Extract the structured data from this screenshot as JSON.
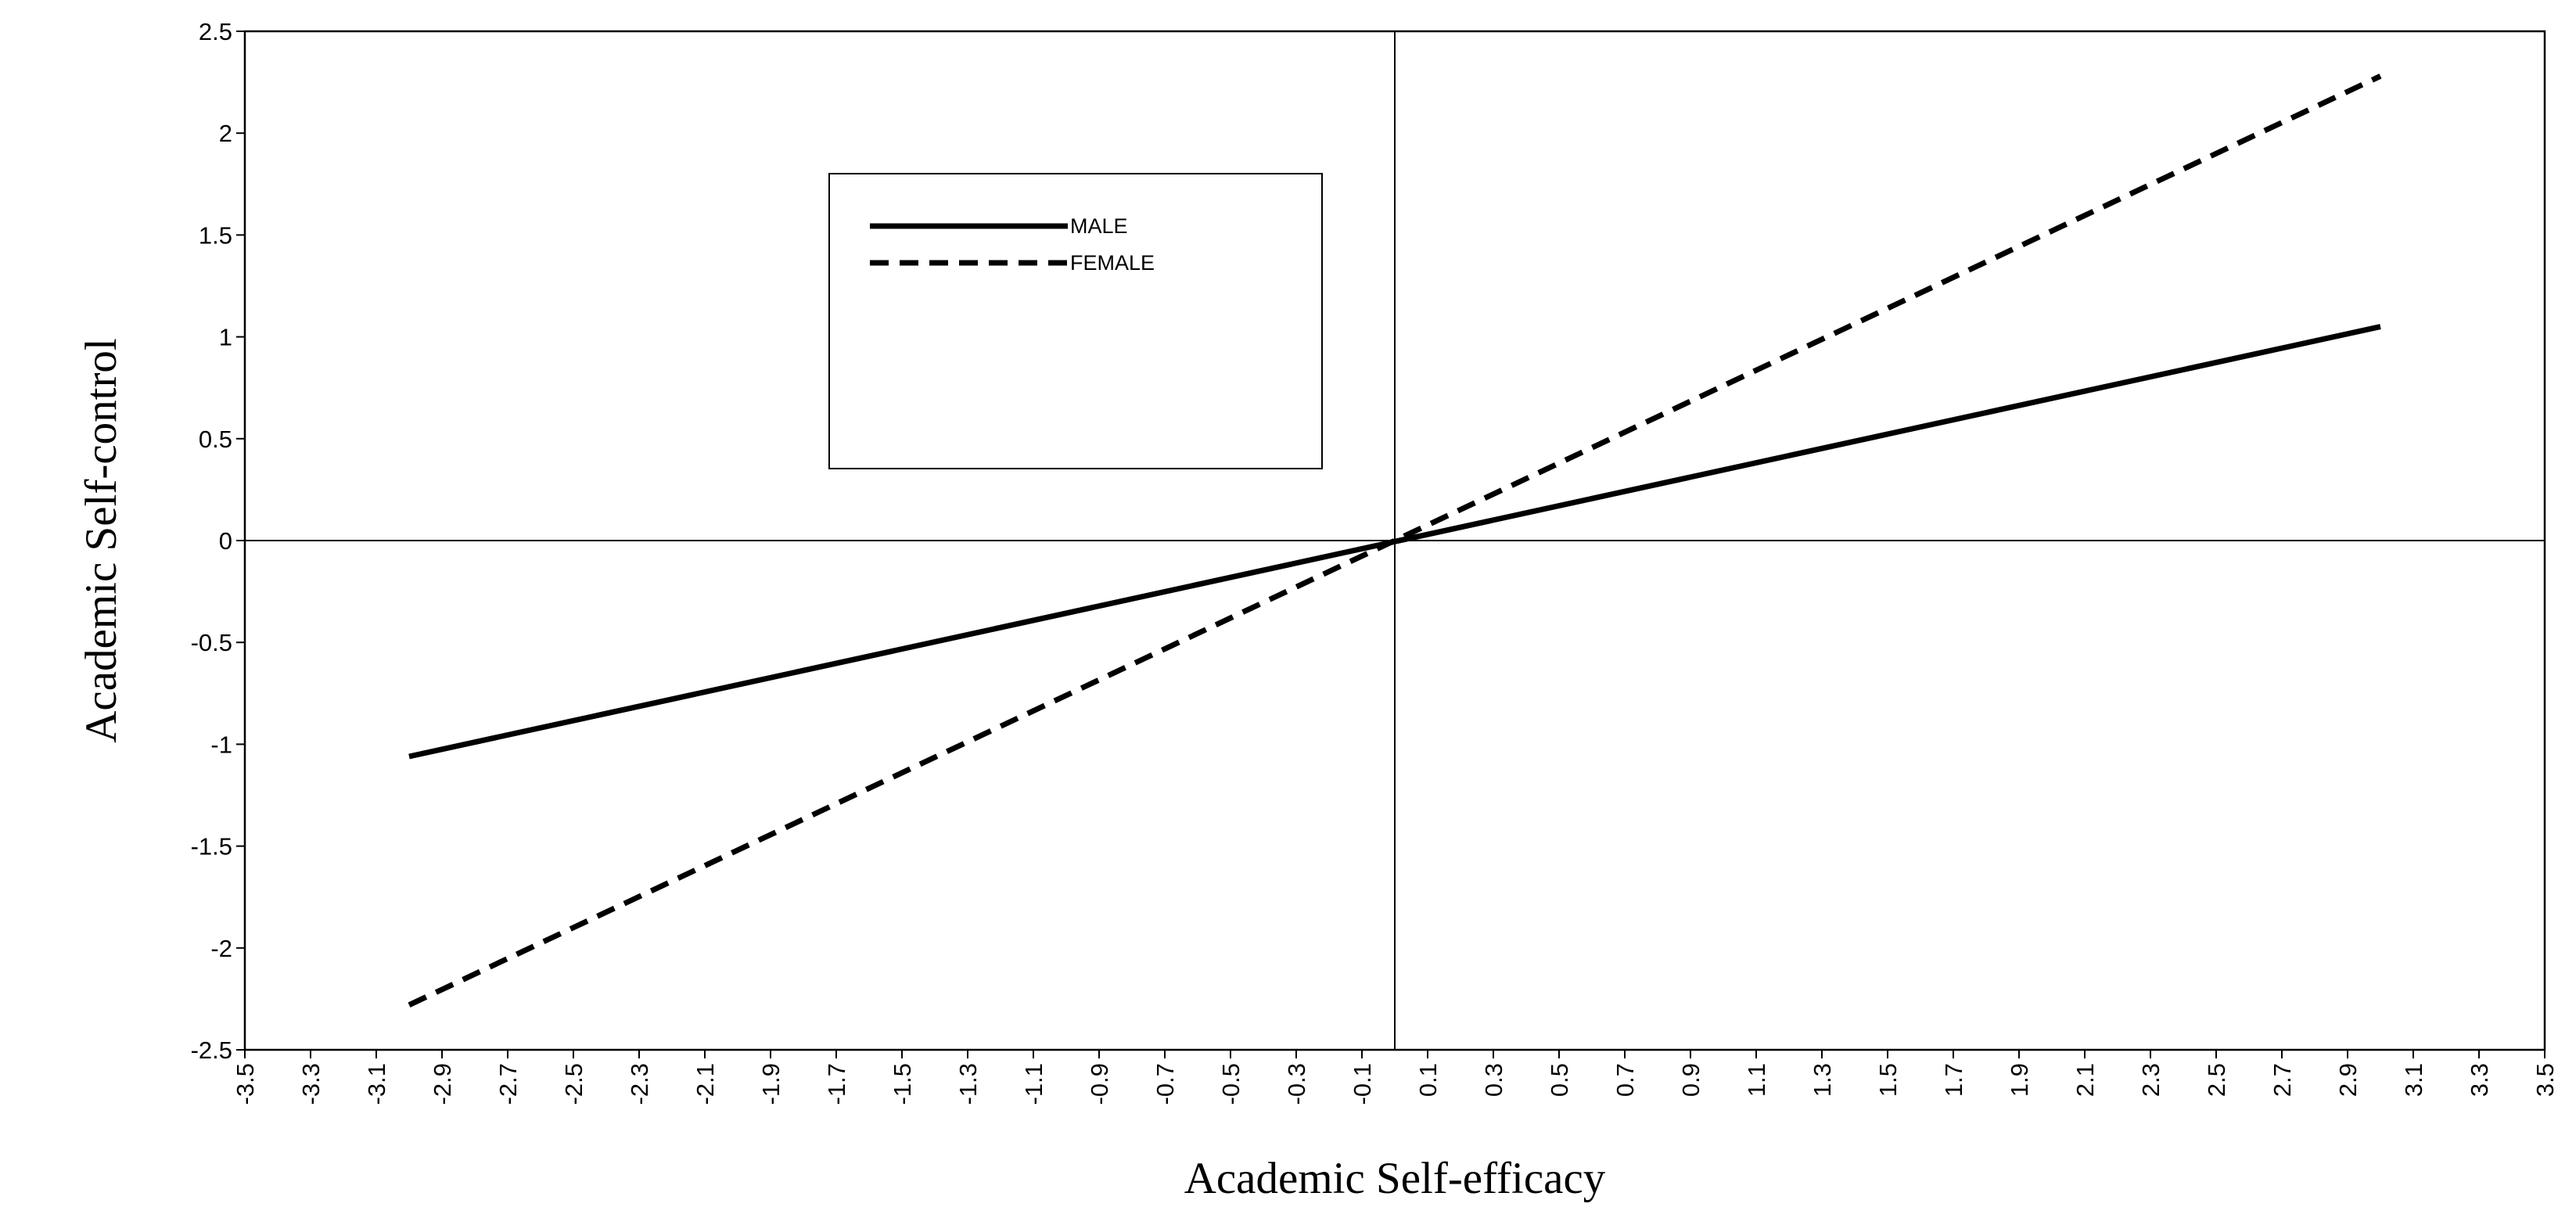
{
  "chart_data": {
    "type": "line",
    "title": "",
    "xlabel": "Academic Self-efficacy",
    "ylabel": "Academic Self-control",
    "xlim": [
      -3.5,
      3.5
    ],
    "ylim": [
      -2.5,
      2.5
    ],
    "x_ticks": [
      "-3.5",
      "-3.3",
      "-3.1",
      "-2.9",
      "-2.7",
      "-2.5",
      "-2.3",
      "-2.1",
      "-1.9",
      "-1.7",
      "-1.5",
      "-1.3",
      "-1.1",
      "-0.9",
      "-0.7",
      "-0.5",
      "-0.3",
      "-0.1",
      "0.1",
      "0.3",
      "0.5",
      "0.7",
      "0.9",
      "1.1",
      "1.3",
      "1.5",
      "1.7",
      "1.9",
      "2.1",
      "2.3",
      "2.5",
      "2.7",
      "2.9",
      "3.1",
      "3.3",
      "3.5"
    ],
    "y_ticks": [
      "2.5",
      "2",
      "1.5",
      "1",
      "0.5",
      "0",
      "-0.5",
      "-1",
      "-1.5",
      "-2",
      "-2.5"
    ],
    "grid": false,
    "legend_position": "upper-left-center",
    "series": [
      {
        "name": "MALE",
        "style": "solid",
        "color": "#000000",
        "x": [
          -3.0,
          3.0
        ],
        "y": [
          -1.06,
          1.05
        ]
      },
      {
        "name": "FEMALE",
        "style": "dashed",
        "color": "#000000",
        "x": [
          -3.0,
          3.0
        ],
        "y": [
          -2.28,
          2.28
        ]
      }
    ]
  }
}
